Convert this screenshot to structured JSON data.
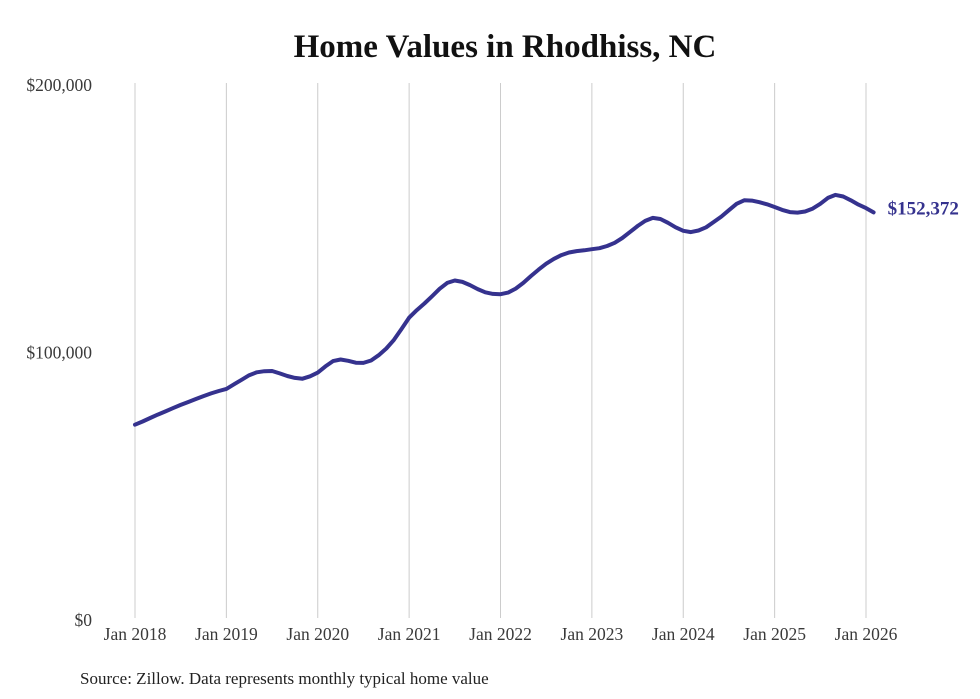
{
  "title": "Home Values in Rhodhiss, NC",
  "end_label": "$152,372",
  "source_note": "Source: Zillow. Data represents monthly typical home value",
  "colors": {
    "line": "#35328e",
    "end_label": "#35328e",
    "grid": "#cccccc",
    "title": "#111111",
    "axis_text": "#3a3a3a",
    "source_text": "#222222",
    "background": "#ffffff"
  },
  "chart_data": {
    "type": "line",
    "title": "Home Values in Rhodhiss, NC",
    "xlabel": "",
    "ylabel": "",
    "ylim": [
      0,
      200000
    ],
    "y_tick_labels": [
      "$0",
      "$100,000",
      "$200,000"
    ],
    "x_tick_labels": [
      "Jan 2018",
      "Jan 2019",
      "Jan 2020",
      "Jan 2021",
      "Jan 2022",
      "Jan 2023",
      "Jan 2024",
      "Jan 2025",
      "Jan 2026"
    ],
    "grid": "vertical-only",
    "legend": "none",
    "series": [
      {
        "name": "Monthly typical home value (USD)",
        "start_month": "2018-01",
        "end_month": "2026-02",
        "cadence": "monthly",
        "last_value": 152372,
        "values": [
          73000,
          74200,
          75500,
          76800,
          78000,
          79200,
          80400,
          81500,
          82600,
          83700,
          84700,
          85600,
          86400,
          88100,
          89800,
          91500,
          92600,
          93000,
          93100,
          92200,
          91200,
          90500,
          90200,
          91100,
          92500,
          94800,
          96800,
          97400,
          96900,
          96200,
          96100,
          97000,
          99000,
          101500,
          104700,
          108800,
          113000,
          115800,
          118300,
          121000,
          123800,
          126000,
          126900,
          126400,
          125200,
          123700,
          122500,
          121900,
          121800,
          122400,
          123900,
          126000,
          128600,
          131000,
          133200,
          135000,
          136400,
          137400,
          137900,
          138200,
          138600,
          139000,
          139800,
          141000,
          142800,
          145000,
          147300,
          149200,
          150300,
          149900,
          148500,
          146800,
          145500,
          145000,
          145600,
          146800,
          148800,
          150800,
          153200,
          155600,
          156900,
          156800,
          156200,
          155400,
          154400,
          153300,
          152500,
          152300,
          152700,
          153800,
          155600,
          157800,
          158900,
          158300,
          156900,
          155300,
          154000,
          152372
        ]
      }
    ]
  }
}
